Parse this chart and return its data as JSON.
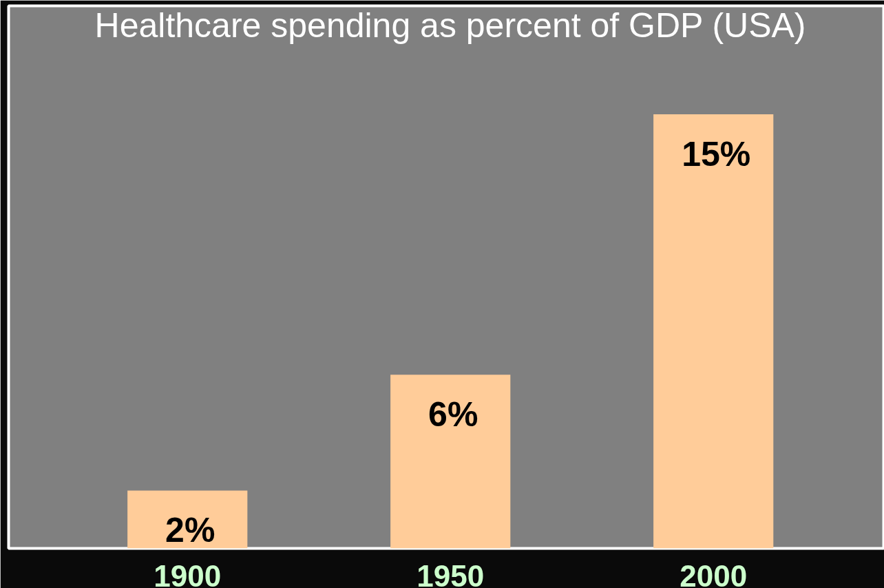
{
  "chart_data": {
    "type": "bar",
    "title": "Healthcare spending as percent of GDP (USA)",
    "categories": [
      "1900",
      "1950",
      "2000"
    ],
    "values": [
      2,
      6,
      15
    ],
    "value_labels": [
      "2%",
      "6%",
      "15%"
    ],
    "color": "#ffcc99",
    "grid": false,
    "tick_labels": "x"
  }
}
